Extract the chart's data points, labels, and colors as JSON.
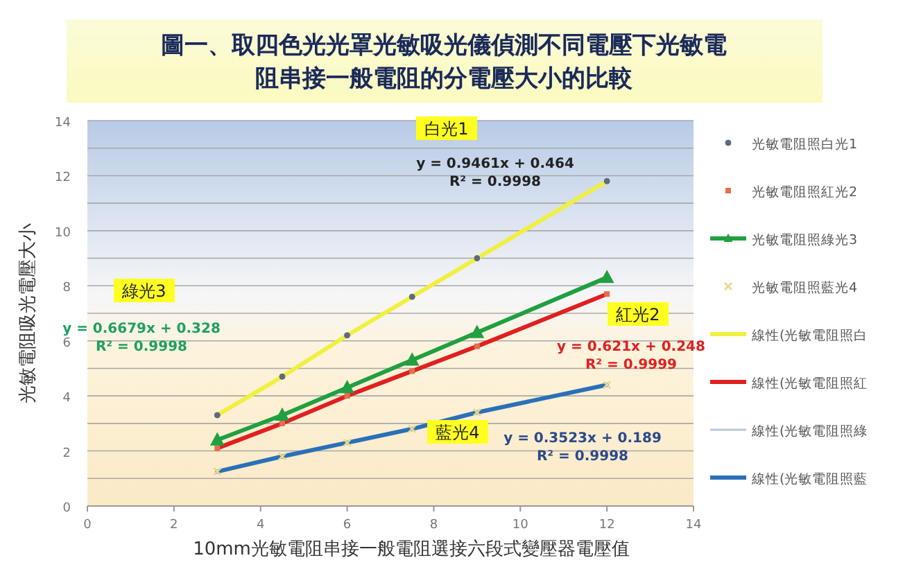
{
  "chart_data": {
    "type": "scatter",
    "title": "圖一、取四色光光罩光敏吸光儀偵測不同電壓下光敏電阻串接一般電阻的分電壓大小的比較",
    "xlabel": "10mm光敏電阻串接一般電阻選接六段式變壓器電壓值",
    "ylabel": "光敏電阻吸光電壓大小",
    "x": [
      3,
      4.5,
      6,
      7.5,
      9,
      12
    ],
    "series": [
      {
        "name": "光敏電阻照白光1",
        "type": "scatter",
        "marker": "circle",
        "color": "#5a6a8a",
        "values": [
          3.3,
          4.7,
          6.2,
          7.6,
          9.0,
          11.8
        ]
      },
      {
        "name": "光敏電阻照紅光2",
        "type": "scatter",
        "marker": "square",
        "color": "#e07050",
        "values": [
          2.1,
          3.0,
          4.0,
          4.9,
          5.8,
          7.7
        ]
      },
      {
        "name": "光敏電阻照綠光3",
        "type": "line",
        "marker": "triangle",
        "color": "#20a040",
        "values": [
          2.4,
          3.3,
          4.3,
          5.3,
          6.3,
          8.3
        ]
      },
      {
        "name": "光敏電阻照藍光4",
        "type": "scatter",
        "marker": "cross",
        "color": "#e8d890",
        "values": [
          1.25,
          1.8,
          2.3,
          2.8,
          3.4,
          4.4
        ]
      },
      {
        "name": "線性(光敏電阻照白",
        "type": "line",
        "marker": "none",
        "color": "#f0f040",
        "values": [
          3.3,
          4.7,
          6.2,
          7.6,
          9.0,
          11.8
        ]
      },
      {
        "name": "線性(光敏電阻照紅",
        "type": "line",
        "marker": "none",
        "color": "#e02020",
        "values": [
          2.1,
          3.0,
          4.0,
          4.9,
          5.8,
          7.7
        ]
      },
      {
        "name": "線性(光敏電阻照綠",
        "type": "line",
        "marker": "none",
        "color": "#b8c8d8",
        "values": [
          null,
          null,
          null,
          null,
          null,
          null
        ]
      },
      {
        "name": "線性(光敏電阻照藍",
        "type": "line",
        "marker": "none",
        "color": "#2a70b8",
        "values": [
          1.25,
          1.8,
          2.3,
          2.8,
          3.4,
          4.4
        ]
      }
    ],
    "annotations": [
      "白光1",
      "y = 0.9461x + 0.464",
      "R² = 0.9998",
      "紅光2",
      "y = 0.621x + 0.248",
      "R² = 0.9999",
      "綠光3",
      "y = 0.6679x + 0.328",
      "R² = 0.9998",
      "藍光4",
      "y = 0.3523x + 0.189",
      "R² = 0.9998"
    ],
    "xlim": [
      0,
      14
    ],
    "xticks": [
      0,
      2,
      4,
      6,
      8,
      10,
      12,
      14
    ],
    "ylim": [
      0,
      14
    ],
    "yticks": [
      0,
      {
        "value": 1,
        "label": null
      },
      2,
      {
        "value": 3,
        "label": null
      },
      4,
      {
        "value": 5,
        "label": null
      },
      6,
      {
        "value": 7,
        "label": null
      },
      8,
      {
        "value": 9,
        "label": null
      },
      10,
      {
        "value": 11,
        "label": null
      },
      12,
      {
        "value": 13,
        "label": null
      },
      14
    ],
    "grid": "y",
    "legend": "right"
  }
}
